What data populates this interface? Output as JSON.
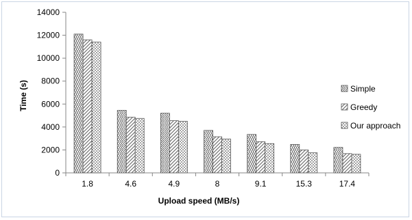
{
  "chart_data": {
    "type": "bar",
    "title": "",
    "xlabel": "Upload speed (MB/s)",
    "ylabel": "Time (s)",
    "ylim": [
      0,
      14000
    ],
    "yticks": [
      0,
      2000,
      4000,
      6000,
      8000,
      10000,
      12000,
      14000
    ],
    "categories": [
      "1.8",
      "4.6",
      "4.9",
      "8",
      "9.1",
      "15.3",
      "17.4"
    ],
    "series": [
      {
        "name": "Simple",
        "pattern": "zigzag",
        "values": [
          12100,
          5450,
          5200,
          3700,
          3350,
          2480,
          2220
        ]
      },
      {
        "name": "Greedy",
        "pattern": "diagonal",
        "values": [
          11600,
          4850,
          4550,
          3150,
          2720,
          2000,
          1680
        ]
      },
      {
        "name": "Our approach",
        "pattern": "dots",
        "values": [
          11400,
          4750,
          4500,
          2950,
          2550,
          1750,
          1620
        ]
      }
    ],
    "grid": "none",
    "legend_position": "right"
  }
}
